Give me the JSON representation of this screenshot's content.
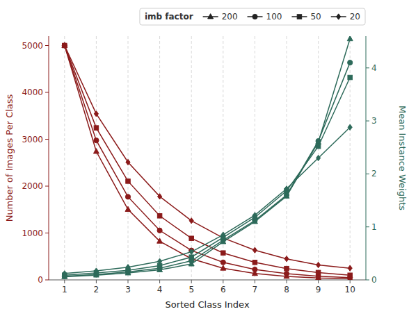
{
  "chart_data": {
    "type": "line",
    "xlabel": "Sorted Class Index",
    "ylabel": "Number of Images Per Class",
    "y2label": "Mean Instance Weights",
    "legend_title": "imb factor",
    "legend": "upper right",
    "grid": "x",
    "x": [
      1,
      2,
      3,
      4,
      5,
      6,
      7,
      8,
      9,
      10
    ],
    "xlim": [
      0.5,
      10.5
    ],
    "xticks": [
      1,
      2,
      3,
      4,
      5,
      6,
      7,
      8,
      9,
      10
    ],
    "ylim": [
      0,
      5200
    ],
    "yticks": [
      0,
      1000,
      2000,
      3000,
      4000,
      5000
    ],
    "y2lim": [
      0,
      4.6
    ],
    "y2ticks": [
      0,
      1,
      2,
      3,
      4
    ],
    "series": [
      {
        "name": "200",
        "color": "#8B1A1A",
        "marker": "triangle",
        "axis": "y",
        "values": [
          5000,
          2740,
          1503,
          825,
          452,
          248,
          136,
          75,
          41,
          25
        ]
      },
      {
        "name": "100",
        "color": "#8B1A1A",
        "marker": "circle",
        "axis": "y",
        "values": [
          5000,
          2976,
          1772,
          1055,
          628,
          374,
          222,
          133,
          79,
          50
        ]
      },
      {
        "name": "50",
        "color": "#8B1A1A",
        "marker": "square",
        "axis": "y",
        "values": [
          5000,
          3243,
          2105,
          1366,
          886,
          575,
          373,
          242,
          157,
          100
        ]
      },
      {
        "name": "20",
        "color": "#8B1A1A",
        "marker": "diamond",
        "axis": "y",
        "values": [
          5000,
          3543,
          2511,
          1780,
          1262,
          895,
          634,
          449,
          318,
          250
        ]
      },
      {
        "name": "200",
        "color": "#2D6A5A",
        "marker": "triangle",
        "axis": "y2",
        "values": [
          0.06,
          0.09,
          0.13,
          0.19,
          0.3,
          0.72,
          1.1,
          1.58,
          2.6,
          4.55
        ]
      },
      {
        "name": "100",
        "color": "#2D6A5A",
        "marker": "circle",
        "axis": "y2",
        "values": [
          0.07,
          0.1,
          0.15,
          0.22,
          0.36,
          0.75,
          1.12,
          1.6,
          2.62,
          4.1
        ]
      },
      {
        "name": "50",
        "color": "#2D6A5A",
        "marker": "square",
        "axis": "y2",
        "values": [
          0.09,
          0.13,
          0.18,
          0.27,
          0.43,
          0.8,
          1.18,
          1.68,
          2.52,
          3.82
        ]
      },
      {
        "name": "20",
        "color": "#2D6A5A",
        "marker": "diamond",
        "axis": "y2",
        "values": [
          0.12,
          0.17,
          0.24,
          0.35,
          0.53,
          0.85,
          1.22,
          1.72,
          2.3,
          2.88
        ]
      }
    ]
  }
}
